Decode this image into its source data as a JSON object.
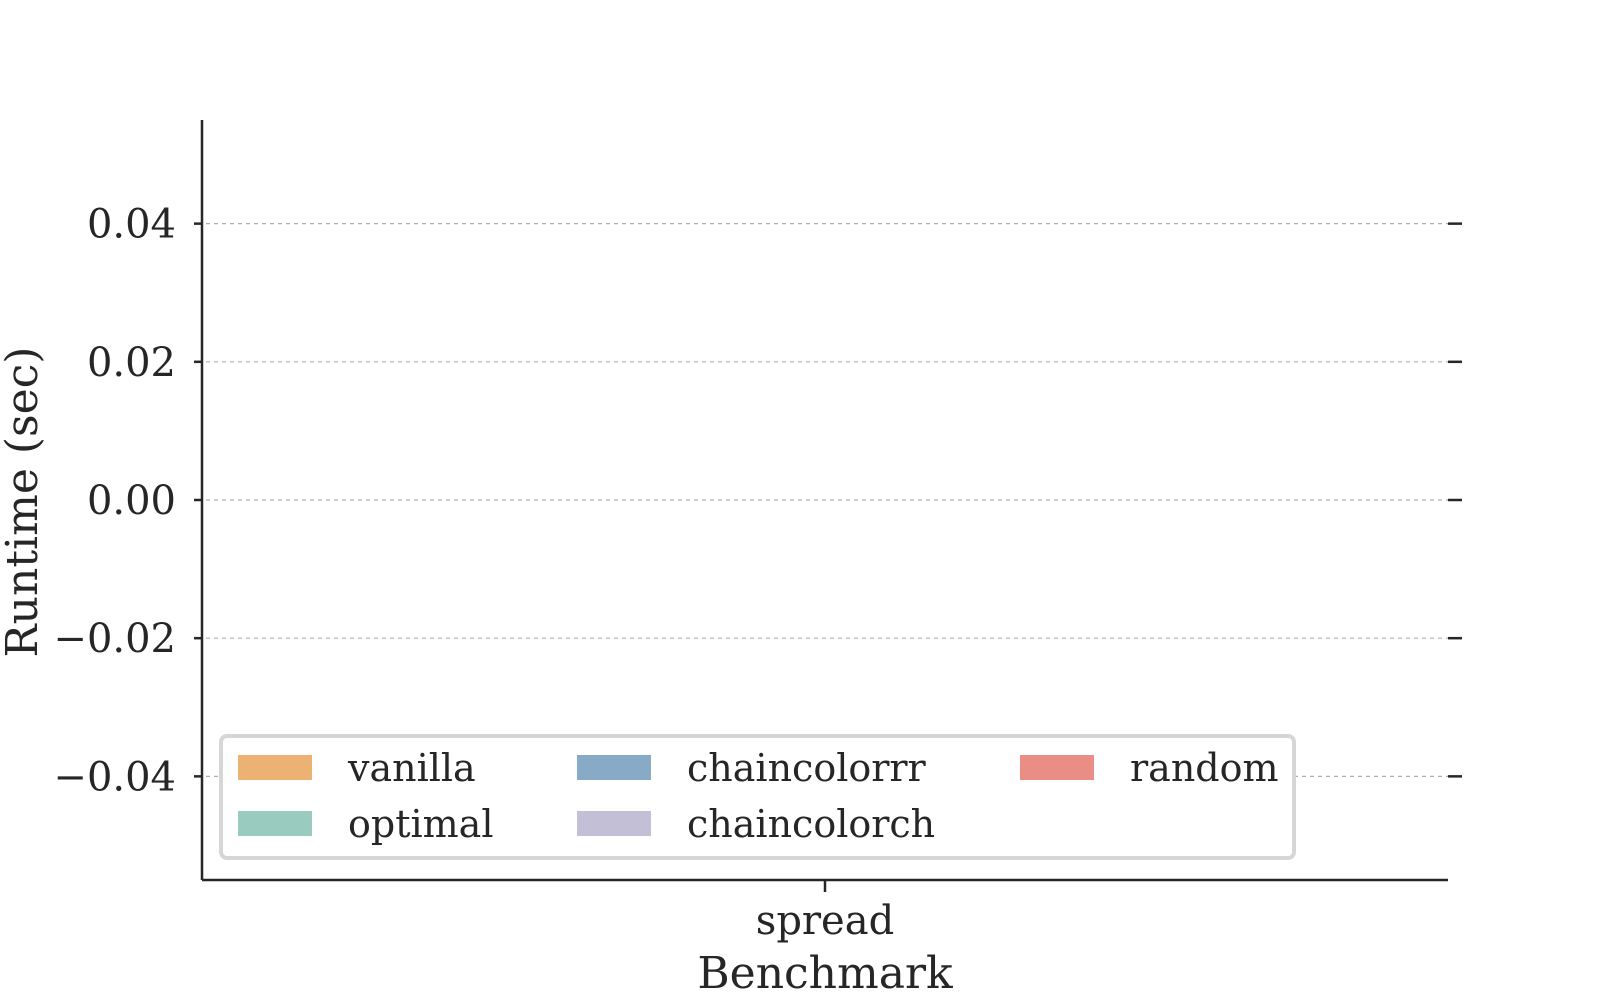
{
  "chart_data": {
    "type": "bar",
    "categories": [
      "spread"
    ],
    "series": [
      {
        "name": "vanilla",
        "color": "#ebb273",
        "values": [
          0
        ]
      },
      {
        "name": "optimal",
        "color": "#99cbbf",
        "values": [
          0
        ]
      },
      {
        "name": "chaincolorrr",
        "color": "#87aac6",
        "values": [
          0
        ]
      },
      {
        "name": "chaincolorch",
        "color": "#c3bfd7",
        "values": [
          0
        ]
      },
      {
        "name": "random",
        "color": "#e98d85",
        "values": [
          0
        ]
      }
    ],
    "xlabel": "Benchmark",
    "ylabel": "Runtime (sec)",
    "ylim": [
      -0.055,
      0.055
    ],
    "yticks": [
      -0.04,
      -0.02,
      0.0,
      0.02,
      0.04
    ],
    "ytick_labels": [
      "−0.04",
      "−0.02",
      "0.00",
      "0.02",
      "0.04"
    ],
    "grid": "horizontal dashed",
    "legend_position": "lower-left"
  }
}
